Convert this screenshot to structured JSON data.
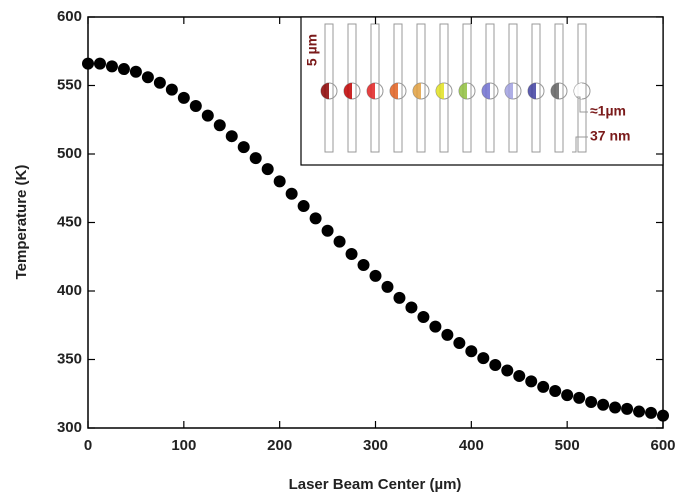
{
  "chart_data": {
    "type": "scatter",
    "xlabel": "Laser Beam Center (µm)",
    "ylabel": "Temperature (K)",
    "x": [
      0,
      12.5,
      25,
      37.5,
      50,
      62.5,
      75,
      87.5,
      100,
      112.5,
      125,
      137.5,
      150,
      162.5,
      175,
      187.5,
      200,
      212.5,
      225,
      237.5,
      250,
      262.5,
      275,
      287.5,
      300,
      312.5,
      325,
      337.5,
      350,
      362.5,
      375,
      387.5,
      400,
      412.5,
      425,
      437.5,
      450,
      462.5,
      475,
      487.5,
      500,
      512.5,
      525,
      537.5,
      550,
      562.5,
      575,
      587.5,
      600
    ],
    "values": [
      566,
      566,
      564,
      562,
      560,
      556,
      552,
      547,
      541,
      535,
      528,
      521,
      513,
      505,
      497,
      489,
      480,
      471,
      462,
      453,
      444,
      436,
      427,
      419,
      411,
      403,
      395,
      388,
      381,
      374,
      368,
      362,
      356,
      351,
      346,
      342,
      338,
      334,
      330,
      327,
      324,
      322,
      319,
      317,
      315,
      314,
      312,
      311,
      309
    ],
    "color": "#000000",
    "xlim": [
      0,
      600
    ],
    "xticks": [
      0,
      100,
      200,
      300,
      400,
      500,
      600
    ],
    "ylim": [
      300,
      600
    ],
    "yticks": [
      300,
      350,
      400,
      450,
      500,
      550,
      600
    ],
    "inset_annotations": [
      "5 µm",
      "≈1µm",
      "37 nm"
    ]
  }
}
